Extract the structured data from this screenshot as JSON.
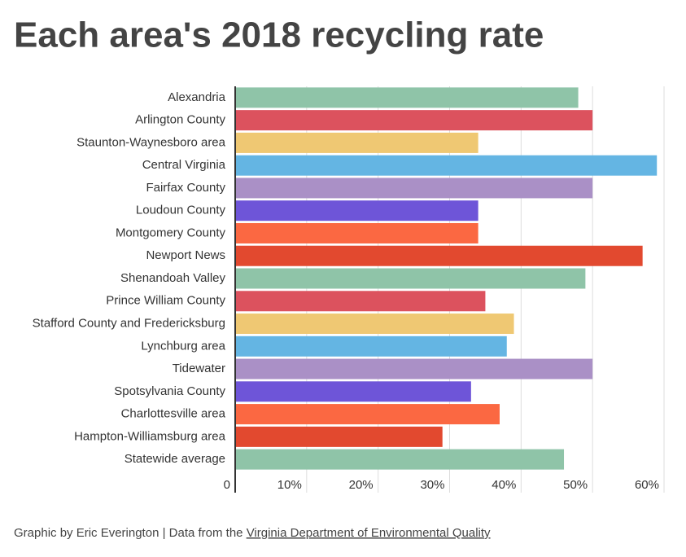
{
  "chart_data": {
    "type": "bar",
    "orientation": "horizontal",
    "title": "Each area's 2018 recycling rate",
    "categories": [
      "Alexandria",
      "Arlington County",
      "Staunton-Waynesboro area",
      "Central Virginia",
      "Fairfax County",
      "Loudoun County",
      "Montgomery County",
      "Newport News",
      "Shenandoah Valley",
      "Prince William County",
      "Stafford County and Fredericksburg",
      "Lynchburg area",
      "Tidewater",
      "Spotsylvania County",
      "Charlottesville area",
      "Hampton-Williamsburg area",
      "Statewide average"
    ],
    "values": [
      48,
      50,
      34,
      59,
      50,
      34,
      34,
      57,
      49,
      35,
      39,
      38,
      50,
      33,
      37,
      29,
      46
    ],
    "colors": [
      "#8fc4a8",
      "#dc525e",
      "#efc873",
      "#64b5e3",
      "#aa90c6",
      "#6e55d8",
      "#fb6842",
      "#e2492f"
    ],
    "xlim": [
      0,
      60
    ],
    "xticks": [
      0,
      {
        "value": 10,
        "label": "10%"
      },
      {
        "value": 20,
        "label": "20%"
      },
      {
        "value": 30,
        "label": "30%"
      },
      {
        "value": 40,
        "label": "40%"
      },
      {
        "value": 50,
        "label": "50%"
      },
      {
        "value": 60,
        "label": "60%"
      }
    ],
    "grid": true
  },
  "footer": {
    "prefix": "Graphic by Eric Everington | Data from the ",
    "link": "Virginia Department of Environmental Quality"
  }
}
